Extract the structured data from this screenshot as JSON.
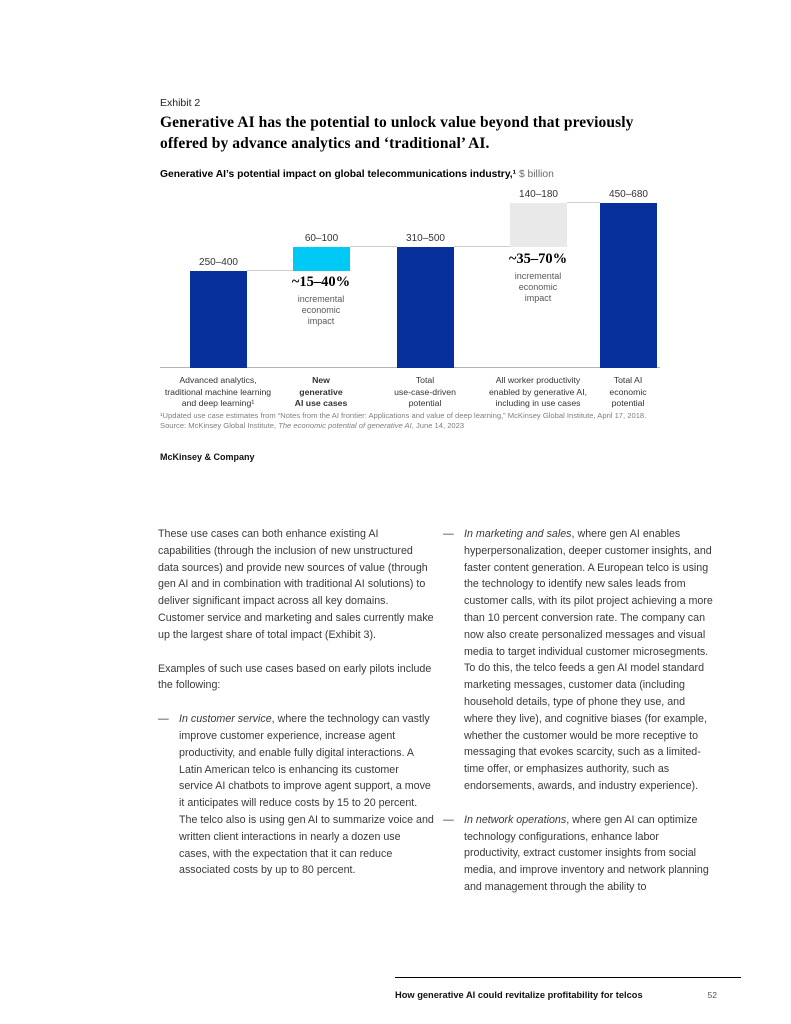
{
  "exhibit": {
    "label": "Exhibit 2",
    "title": "Generative AI has the potential to unlock value beyond that previously offered by advance analytics and ‘traditional’ AI.",
    "subtitle_bold": "Generative AI’s potential impact on global telecommunications industry,¹",
    "subtitle_unit": " $ billion"
  },
  "chart_data": {
    "type": "bar",
    "subtype": "waterfall",
    "title": "Generative AI’s potential impact on global telecommunications industry",
    "unit": "$ billion",
    "ylim": [
      0,
      730
    ],
    "grid": false,
    "categories": [
      "Advanced analytics,\ntraditional machine learning\nand deep learning¹",
      "New\ngenerative\nAI use cases",
      "Total\nuse-case-driven\npotential",
      "All worker productivity\nenabled by generative AI,\nincluding in use cases",
      "Total AI\neconomic\npotential"
    ],
    "bars": [
      {
        "value_label": "250–400",
        "low": 250,
        "high": 400,
        "stack_from": 0,
        "stack_to": 400,
        "color": "#08309c",
        "floating": false
      },
      {
        "value_label": "60–100",
        "low": 60,
        "high": 100,
        "stack_from": 400,
        "stack_to": 500,
        "color": "#00c9f5",
        "floating": true
      },
      {
        "value_label": "310–500",
        "low": 310,
        "high": 500,
        "stack_from": 0,
        "stack_to": 500,
        "color": "#08309c",
        "floating": false
      },
      {
        "value_label": "140–180",
        "low": 140,
        "high": 180,
        "stack_from": 500,
        "stack_to": 680,
        "color": "#e9e9e9",
        "floating": true
      },
      {
        "value_label": "450–680",
        "low": 450,
        "high": 680,
        "stack_from": 0,
        "stack_to": 680,
        "color": "#08309c",
        "floating": false
      }
    ],
    "connector_levels": [
      400,
      500,
      500,
      680
    ],
    "annotations": [
      {
        "headline": "~15–40%",
        "sub": "incremental\neconomic\nimpact"
      },
      {
        "headline": "~35–70%",
        "sub": "incremental\neconomic\nimpact"
      }
    ]
  },
  "footnote": {
    "line1": "¹Updated use case estimates from “Notes from the AI frontier: Applications and value of deep learning,” McKinsey Global Institute, April 17, 2018.",
    "source_prefix": "Source: McKinsey Global Institute, ",
    "source_italic": "The economic potential of generative AI",
    "source_suffix": ", June 14, 2023"
  },
  "brand": "McKinsey & Company",
  "body": {
    "dash": "—",
    "left": {
      "p1": "These use cases can both enhance existing AI capabilities (through the inclusion of new unstructured data sources) and provide new sources of value (through gen AI and in combination with traditional AI solutions) to deliver significant impact across all key domains. Customer service and marketing and sales currently make up the largest share of total impact (Exhibit 3).",
      "p2": "Examples of such use cases based on early pilots include the following:",
      "bullet1_lead": "In customer service",
      "bullet1_rest": ", where the technology can vastly improve customer experience, increase agent productivity, and enable fully digital interactions. A Latin American telco is enhancing its customer service AI chatbots to improve agent support, a move it anticipates will reduce costs by 15 to 20 percent. The telco also is using gen AI to summarize voice and written client interactions in nearly a dozen use cases, with the expectation that it can reduce associated costs by up to 80 percent."
    },
    "right": {
      "bullet2_lead": "In marketing and sales",
      "bullet2_rest": ", where gen AI enables hyperpersonalization, deeper customer insights, and faster content generation. A European telco is using the technology to identify new sales leads from customer calls, with its pilot project achieving a more than 10 percent conversion rate. The company can now also create personalized messages and visual media to target individual customer microsegments. To do this, the telco feeds a gen AI model standard marketing messages, customer data (including household details, type of phone they use, and where they live), and cognitive biases (for example, whether the customer would be more receptive to messaging that evokes scarcity, such as a limited-time offer, or emphasizes authority, such as endorsements, awards, and industry experience).",
      "bullet3_lead": "In network operations",
      "bullet3_rest": ", where gen AI can optimize technology configurations, enhance labor productivity, extract customer insights from social media, and improve inventory and network planning and management through the ability to"
    }
  },
  "footer": {
    "title": "How generative AI could revitalize profitability for telcos",
    "page": "52"
  }
}
